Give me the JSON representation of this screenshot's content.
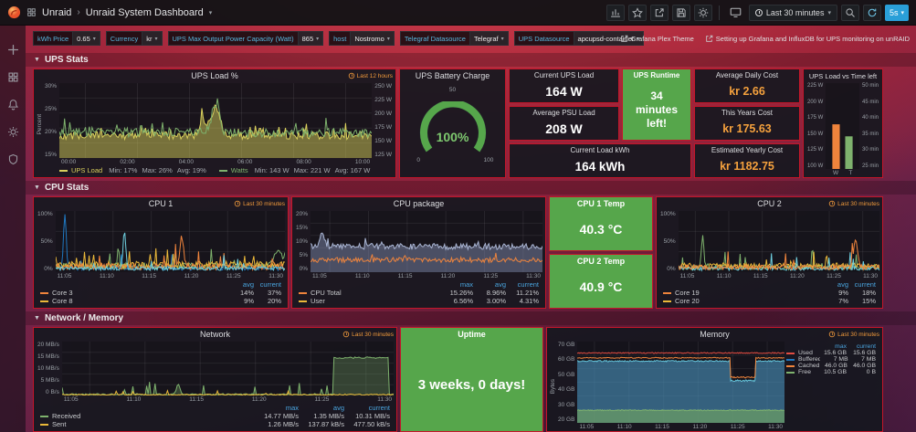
{
  "nav": {
    "app": "Unraid",
    "separator": "›",
    "dashboard_title": "Unraid System Dashboard",
    "time_range": "Last 30 minutes",
    "refresh": "5s"
  },
  "variables": [
    {
      "label": "kWh Price",
      "value": "0.65"
    },
    {
      "label": "Currency",
      "value": "kr"
    },
    {
      "label": "UPS Max Output Power Capacity (Watt)",
      "value": "865"
    },
    {
      "label": "host",
      "value": "Nostromo"
    },
    {
      "label": "Telegraf Datasource",
      "value": "Telegraf"
    },
    {
      "label": "UPS Datasource",
      "value": "apcupsd-container"
    }
  ],
  "links": [
    {
      "label": "Grafana Plex Theme"
    },
    {
      "label": "Setting up Grafana and InfluxDB for UPS monitoring on unRAID"
    }
  ],
  "rows": [
    {
      "title": "UPS Stats"
    },
    {
      "title": "CPU Stats"
    },
    {
      "title": "Network / Memory"
    }
  ],
  "panels": {
    "ups_load": {
      "title": "UPS Load %",
      "time_override": "Last 12 hours",
      "ylabel": "Percent",
      "y_left": [
        "30%",
        "25%",
        "20%",
        "15%"
      ],
      "y_right": [
        "250 W",
        "225 W",
        "200 W",
        "175 W",
        "150 W",
        "125 W"
      ],
      "x_ticks": [
        "00:00",
        "02:00",
        "04:00",
        "06:00",
        "08:00",
        "10:00"
      ],
      "legend": {
        "colorNames": true,
        "rows": [
          {
            "name": "UPS Load",
            "color": "#d8cf5c",
            "values": [
              "Min: 17%",
              "Max: 26%",
              "Avg: 19%"
            ]
          },
          {
            "name": "Watts",
            "color": "#7eb26d",
            "values": [
              "Min: 143 W",
              "Max: 221 W",
              "Avg: 167 W"
            ]
          }
        ]
      }
    },
    "battery": {
      "title": "UPS Battery Charge",
      "value": "100%",
      "ticks": [
        "0",
        "50",
        "100"
      ]
    },
    "current_ups_load": {
      "title": "Current UPS Load",
      "value": "164 W"
    },
    "avg_psu_load": {
      "title": "Average PSU Load",
      "value": "208 W"
    },
    "current_load_kwh": {
      "title": "Current Load kWh",
      "value": "164 kWh"
    },
    "ups_runtime": {
      "title": "UPS Runtime",
      "value": "34 minutes left!"
    },
    "avg_daily_cost": {
      "title": "Average Daily Cost",
      "value": "kr 2.66"
    },
    "years_cost": {
      "title": "This Years Cost",
      "value": "kr 175.63"
    },
    "est_yearly_cost": {
      "title": "Estimated Yearly Cost",
      "value": "kr 1182.75"
    },
    "ups_bar": {
      "title": "UPS Load vs Time left",
      "y_left": [
        "225 W",
        "200 W",
        "175 W",
        "150 W",
        "125 W",
        "100 W"
      ],
      "y_right": [
        "50 min",
        "45 min",
        "40 min",
        "35 min",
        "30 min",
        "25 min"
      ],
      "x_ticks": [
        "W",
        "T"
      ]
    },
    "cpu1": {
      "title": "CPU 1",
      "time_override": "Last 30 minutes",
      "y_ticks": [
        "100%",
        "50%",
        "0%"
      ],
      "x_ticks": [
        "11:05",
        "11:10",
        "11:15",
        "11:20",
        "11:25",
        "11:30"
      ],
      "legend": {
        "headers": [
          "avg",
          "current"
        ],
        "rows": [
          {
            "name": "Core 3",
            "color": "#ef843c",
            "values": [
              "14%",
              "37%"
            ]
          },
          {
            "name": "Core 8",
            "color": "#eab839",
            "values": [
              "9%",
              "20%"
            ]
          }
        ]
      }
    },
    "cpu_pkg": {
      "title": "CPU package",
      "y_ticks": [
        "20%",
        "15%",
        "10%",
        "5%",
        "0%"
      ],
      "x_ticks": [
        "11:05",
        "11:10",
        "11:15",
        "11:20",
        "11:25",
        "11:30"
      ],
      "legend": {
        "headers": [
          "max",
          "avg",
          "current"
        ],
        "rows": [
          {
            "name": "CPU Total",
            "color": "#ef843c",
            "values": [
              "15.26%",
              "8.96%",
              "11.21%"
            ]
          },
          {
            "name": "User",
            "color": "#eab839",
            "values": [
              "6.56%",
              "3.00%",
              "4.31%"
            ]
          }
        ]
      }
    },
    "cpu1_temp": {
      "title": "CPU 1 Temp",
      "value": "40.3 °C"
    },
    "cpu2_temp": {
      "title": "CPU 2 Temp",
      "value": "40.9 °C"
    },
    "cpu2": {
      "title": "CPU 2",
      "time_override": "Last 30 minutes",
      "y_ticks": [
        "100%",
        "50%",
        "0%"
      ],
      "x_ticks": [
        "11:05",
        "11:10",
        "11:15",
        "11:20",
        "11:25",
        "11:30"
      ],
      "legend": {
        "headers": [
          "avg",
          "current"
        ],
        "rows": [
          {
            "name": "Core 19",
            "color": "#ef843c",
            "values": [
              "9%",
              "18%"
            ]
          },
          {
            "name": "Core 20",
            "color": "#eab839",
            "values": [
              "7%",
              "15%"
            ]
          }
        ]
      }
    },
    "network": {
      "title": "Network",
      "time_override": "Last 30 minutes",
      "y_ticks": [
        "20 MB/s",
        "15 MB/s",
        "10 MB/s",
        "5 MB/s",
        "0 B/s"
      ],
      "x_ticks": [
        "11:05",
        "11:10",
        "11:15",
        "11:20",
        "11:25",
        "11:30"
      ],
      "legend": {
        "headers": [
          "max",
          "avg",
          "current"
        ],
        "rows": [
          {
            "name": "Received",
            "color": "#7eb26d",
            "values": [
              "14.77 MB/s",
              "1.35 MB/s",
              "10.31 MB/s"
            ]
          },
          {
            "name": "Sent",
            "color": "#eab839",
            "values": [
              "1.26 MB/s",
              "137.87 kB/s",
              "477.50 kB/s"
            ]
          }
        ]
      }
    },
    "uptime": {
      "title": "Uptime",
      "value": "3 weeks, 0 days!"
    },
    "memory": {
      "title": "Memory",
      "time_override": "Last 30 minutes",
      "ylabel": "Bytes",
      "y_ticks": [
        "70 GB",
        "60 GB",
        "50 GB",
        "40 GB",
        "30 GB",
        "20 GB"
      ],
      "x_ticks": [
        "11:05",
        "11:10",
        "11:15",
        "11:20",
        "11:25",
        "11:30"
      ],
      "legend": {
        "headers": [
          "max",
          "current"
        ],
        "rows": [
          {
            "name": "Used",
            "color": "#e24d42",
            "values": [
              "15.6 GB",
              "15.6 GB"
            ]
          },
          {
            "name": "Buffered",
            "color": "#1f78c1",
            "values": [
              "7 MB",
              "7 MB"
            ]
          },
          {
            "name": "Cached",
            "color": "#ef843c",
            "values": [
              "46.0 GB",
              "46.0 GB"
            ]
          },
          {
            "name": "Free",
            "color": "#7eb26d",
            "values": [
              "10.5 GB",
              "0 B"
            ]
          }
        ]
      }
    }
  },
  "charts": [
    {
      "id": "ups_load",
      "type": "line",
      "seed": 11,
      "n": 240,
      "grid": 4,
      "vgrid": 6,
      "series": [
        {
          "color": "#d8cf5c",
          "fill": "rgba(214,205,92,0.5)",
          "base": 0.3,
          "amp": 0.05,
          "spikeP": 0.07,
          "spike": 0.16,
          "bumps": [
            {
              "at": 0.5,
              "w": 0.014,
              "h": 0.38
            },
            {
              "at": 0.46,
              "w": 0.01,
              "h": 0.22
            }
          ]
        },
        {
          "color": "#7eb26d",
          "base": 0.34,
          "amp": 0.06,
          "spikeP": 0.06,
          "spike": 0.18,
          "bumps": [
            {
              "at": 0.5,
              "w": 0.012,
              "h": 0.4
            }
          ]
        }
      ]
    },
    {
      "id": "cpu1",
      "type": "line",
      "seed": 5,
      "n": 200,
      "grid": 2,
      "vgrid": 6,
      "series": [
        {
          "color": "#1f78c1",
          "base": 0.07,
          "amp": 0.04,
          "spikeP": 0.02,
          "spike": 0.3,
          "bumps": [
            {
              "at": 0.04,
              "w": 0.006,
              "h": 0.85
            }
          ]
        },
        {
          "color": "#7eb26d",
          "base": 0.1,
          "amp": 0.05,
          "spikeP": 0.05,
          "spike": 0.3,
          "bumps": [
            {
              "at": 0.97,
              "w": 0.02,
              "h": 0.25
            }
          ]
        },
        {
          "color": "#eab839",
          "base": 0.12,
          "amp": 0.06,
          "spikeP": 0.05,
          "spike": 0.25
        },
        {
          "color": "#ef843c",
          "base": 0.09,
          "amp": 0.05,
          "spikeP": 0.04,
          "spike": 0.35,
          "bumps": [
            {
              "at": 0.55,
              "w": 0.008,
              "h": 0.5
            }
          ]
        },
        {
          "color": "#6ed0e0",
          "base": 0.06,
          "amp": 0.03,
          "spikeP": 0.03,
          "spike": 0.25,
          "bumps": [
            {
              "at": 0.3,
              "w": 0.006,
              "h": 0.6
            }
          ]
        }
      ]
    },
    {
      "id": "cpu_pkg",
      "type": "line",
      "seed": 23,
      "n": 200,
      "grid": 4,
      "vgrid": 6,
      "series": [
        {
          "color": "#aab6d4",
          "fill": "rgba(140,150,190,0.45)",
          "base": 0.42,
          "amp": 0.05,
          "spikeP": 0.03,
          "spike": 0.15,
          "bumps": [
            {
              "at": 0.05,
              "w": 0.01,
              "h": 0.2
            }
          ]
        },
        {
          "color": "#ef843c",
          "base": 0.2,
          "amp": 0.04,
          "spikeP": 0.02,
          "spike": 0.1
        }
      ]
    },
    {
      "id": "cpu2",
      "type": "line",
      "seed": 31,
      "n": 200,
      "grid": 2,
      "vgrid": 6,
      "series": [
        {
          "color": "#7eb26d",
          "base": 0.08,
          "amp": 0.04,
          "spikeP": 0.04,
          "spike": 0.3,
          "bumps": [
            {
              "at": 0.12,
              "w": 0.006,
              "h": 0.5
            }
          ]
        },
        {
          "color": "#eab839",
          "base": 0.1,
          "amp": 0.05,
          "spikeP": 0.04,
          "spike": 0.25
        },
        {
          "color": "#6ed0e0",
          "base": 0.06,
          "amp": 0.03,
          "spikeP": 0.02,
          "spike": 0.3
        },
        {
          "color": "#ef843c",
          "base": 0.08,
          "amp": 0.04,
          "spikeP": 0.03,
          "spike": 0.3,
          "bumps": [
            {
              "at": 0.88,
              "w": 0.01,
              "h": 0.45
            }
          ]
        }
      ]
    },
    {
      "id": "network",
      "type": "line",
      "seed": 41,
      "n": 240,
      "grid": 4,
      "vgrid": 6,
      "series": [
        {
          "color": "#7eb26d",
          "fill": "rgba(126,178,109,0.3)",
          "base": 0.02,
          "amp": 0.015,
          "spikeP": 0.05,
          "spike": 0.25,
          "plateau": {
            "from": 0.82,
            "to": 0.985,
            "level": 0.7
          },
          "bumps": [
            {
              "at": 0.35,
              "w": 0.005,
              "h": 0.2
            }
          ]
        },
        {
          "color": "#eab839",
          "base": 0.015,
          "amp": 0.01,
          "spikeP": 0.04,
          "spike": 0.08
        }
      ]
    },
    {
      "id": "memory",
      "type": "line",
      "seed": 51,
      "n": 240,
      "grid": 5,
      "vgrid": 6,
      "series": [
        {
          "color": "#65c5db",
          "fill": "rgba(70,140,180,0.65)",
          "base": 0.76,
          "amp": 0.008,
          "dip": {
            "from": 0.74,
            "to": 0.86,
            "level": 0.52
          }
        },
        {
          "color": "#7eb26d",
          "fill": "rgba(110,160,100,0.7)",
          "base": 0.155,
          "amp": 0.006
        },
        {
          "color": "#ef843c",
          "base": 0.8,
          "amp": 0.006,
          "dip": {
            "from": 0.74,
            "to": 0.86,
            "level": 0.56
          }
        },
        {
          "color": "#e24d42",
          "base": 0.86,
          "amp": 0.006
        }
      ]
    },
    {
      "id": "ups_bar",
      "type": "bars",
      "bars": [
        {
          "label": "W",
          "color": "#ef843c",
          "frac": 0.52
        },
        {
          "label": "T",
          "color": "#7eb26d",
          "frac": 0.38
        }
      ]
    }
  ]
}
